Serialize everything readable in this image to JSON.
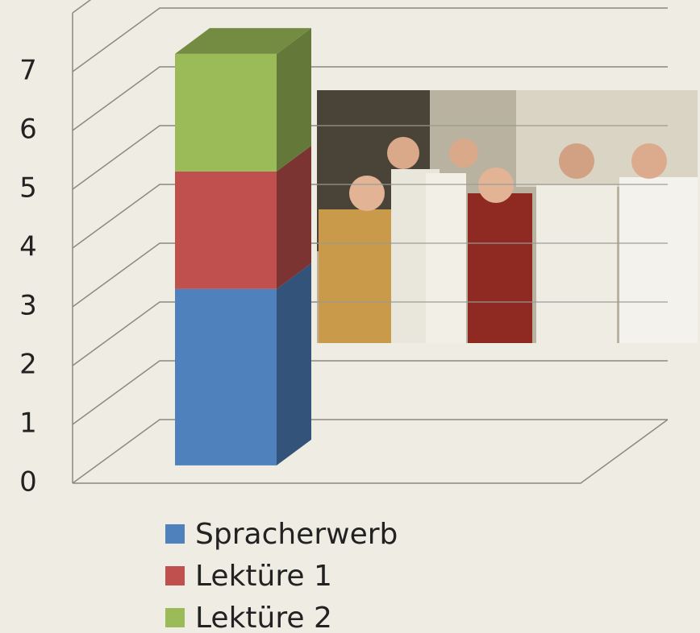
{
  "chart_data": {
    "type": "bar3d_stacked",
    "categories": [
      null
    ],
    "series": [
      {
        "name": "Spracherwerb",
        "color": "#4f81bd",
        "values": [
          3
        ]
      },
      {
        "name": "Lektüre 1",
        "color": "#c0504d",
        "values": [
          2
        ]
      },
      {
        "name": "Lektüre 2",
        "color": "#9bbb59",
        "values": [
          2
        ]
      }
    ],
    "ylim": [
      0,
      8
    ],
    "yticks": [
      0,
      1,
      2,
      3,
      4,
      5,
      6,
      7
    ],
    "grid": true
  }
}
